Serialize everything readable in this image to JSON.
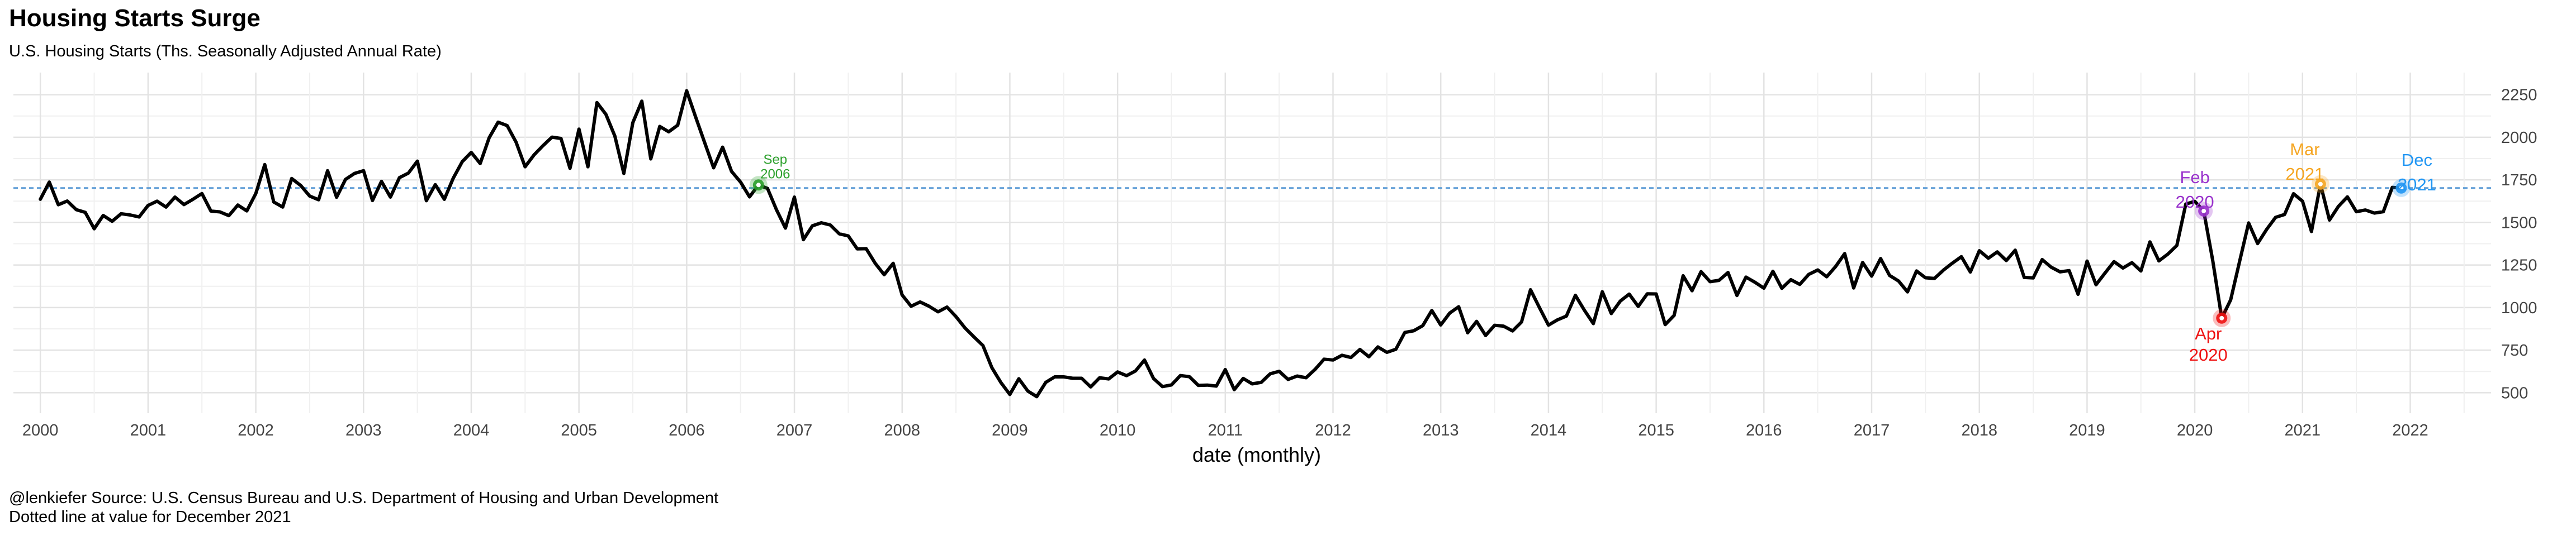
{
  "chart_data": {
    "type": "line",
    "title": "Housing Starts Surge",
    "subtitle": "U.S. Housing Starts (Ths. Seasonally Adjusted Annual Rate)",
    "xlabel": "date (monthly)",
    "ylabel": "",
    "xlim": [
      1999.75,
      2022.75
    ],
    "ylim": [
      380,
      2380
    ],
    "x_ticks": [
      "2000",
      "2001",
      "2002",
      "2003",
      "2004",
      "2005",
      "2006",
      "2007",
      "2008",
      "2009",
      "2010",
      "2011",
      "2012",
      "2013",
      "2014",
      "2015",
      "2016",
      "2017",
      "2018",
      "2019",
      "2020",
      "2021",
      "2022"
    ],
    "y_ticks": [
      500,
      750,
      1000,
      1250,
      1500,
      1750,
      2000,
      2250
    ],
    "y_tick_labels": [
      "500",
      "750",
      "1000",
      "1250",
      "1500",
      "1750",
      "2000",
      "2250"
    ],
    "y_axis_side": "right",
    "grid": true,
    "reference_line": {
      "y": 1702,
      "style": "dotted",
      "color": "#5b9bd5"
    },
    "series": [
      {
        "color": "#000000",
        "start": "2000-01",
        "frequency": "monthly",
        "values": [
          1636,
          1737,
          1604,
          1626,
          1575,
          1559,
          1463,
          1541,
          1507,
          1551,
          1544,
          1532,
          1600,
          1625,
          1590,
          1649,
          1605,
          1636,
          1670,
          1567,
          1562,
          1540,
          1602,
          1568,
          1670,
          1840,
          1620,
          1590,
          1758,
          1717,
          1655,
          1633,
          1804,
          1648,
          1753,
          1788,
          1804,
          1629,
          1741,
          1649,
          1763,
          1790,
          1860,
          1628,
          1722,
          1636,
          1760,
          1857,
          1911,
          1846,
          1998,
          2089,
          2069,
          1971,
          1827,
          1897,
          1951,
          2001,
          1993,
          1818,
          2048,
          1827,
          2204,
          2135,
          2007,
          1788,
          2086,
          2212,
          1873,
          2064,
          2032,
          2071,
          2273,
          2119,
          1969,
          1821,
          1942,
          1800,
          1737,
          1650,
          1720,
          1700,
          1575,
          1467,
          1649,
          1399,
          1480,
          1498,
          1485,
          1433,
          1421,
          1345,
          1346,
          1260,
          1193,
          1260,
          1074,
          1008,
          1033,
          1008,
          975,
          1003,
          947,
          881,
          828,
          777,
          647,
          560,
          490,
          582,
          510,
          477,
          561,
          593,
          593,
          585,
          585,
          534,
          588,
          581,
          622,
          600,
          628,
          692,
          584,
          536,
          546,
          601,
          594,
          543,
          545,
          539,
          636,
          518,
          584,
          552,
          561,
          611,
          626,
          578,
          598,
          588,
          637,
          697,
          692,
          720,
          707,
          754,
          711,
          769,
          737,
          755,
          854,
          864,
          894,
          983,
          898,
          968,
          1005,
          852,
          919,
          836,
          896,
          891,
          863,
          915,
          1105,
          999,
          897,
          928,
          950,
          1072,
          985,
          906,
          1093,
          965,
          1038,
          1079,
          1007,
          1081,
          1080,
          900,
          954,
          1187,
          1099,
          1211,
          1152,
          1160,
          1206,
          1071,
          1179,
          1149,
          1114,
          1213,
          1113,
          1164,
          1136,
          1195,
          1221,
          1181,
          1242,
          1317,
          1115,
          1265,
          1185,
          1288,
          1189,
          1156,
          1092,
          1215,
          1175,
          1171,
          1220,
          1261,
          1299,
          1209,
          1334,
          1290,
          1327,
          1276,
          1337,
          1177,
          1174,
          1282,
          1237,
          1210,
          1217,
          1078,
          1273,
          1134,
          1203,
          1270,
          1232,
          1264,
          1215,
          1386,
          1274,
          1314,
          1365,
          1608,
          1624,
          1567,
          1276,
          938,
          1046,
          1273,
          1497,
          1376,
          1459,
          1530,
          1547,
          1669,
          1625,
          1447,
          1725,
          1514,
          1594,
          1650,
          1563,
          1573,
          1555,
          1563,
          1706,
          1702
        ]
      }
    ],
    "annotations": [
      {
        "date": "2006-09",
        "value": 1720,
        "line1": "Sep",
        "line2": "2006",
        "color": "#2ca02c"
      },
      {
        "date": "2020-02",
        "value": 1567,
        "line1": "Feb",
        "line2": "2020",
        "color": "#9932cc"
      },
      {
        "date": "2020-04",
        "value": 938,
        "line1": "Apr",
        "line2": "2020",
        "color": "#ee1111"
      },
      {
        "date": "2021-03",
        "value": 1725,
        "line1": "Mar",
        "line2": "2021",
        "color": "#f5a623"
      },
      {
        "date": "2021-12",
        "value": 1702,
        "line1": "Dec",
        "line2": "2021",
        "color": "#2196f3"
      }
    ]
  },
  "caption": {
    "line1": "@lenkiefer Source: U.S. Census Bureau and U.S. Department of Housing and Urban Development",
    "line2": "Dotted line at value for December 2021"
  }
}
